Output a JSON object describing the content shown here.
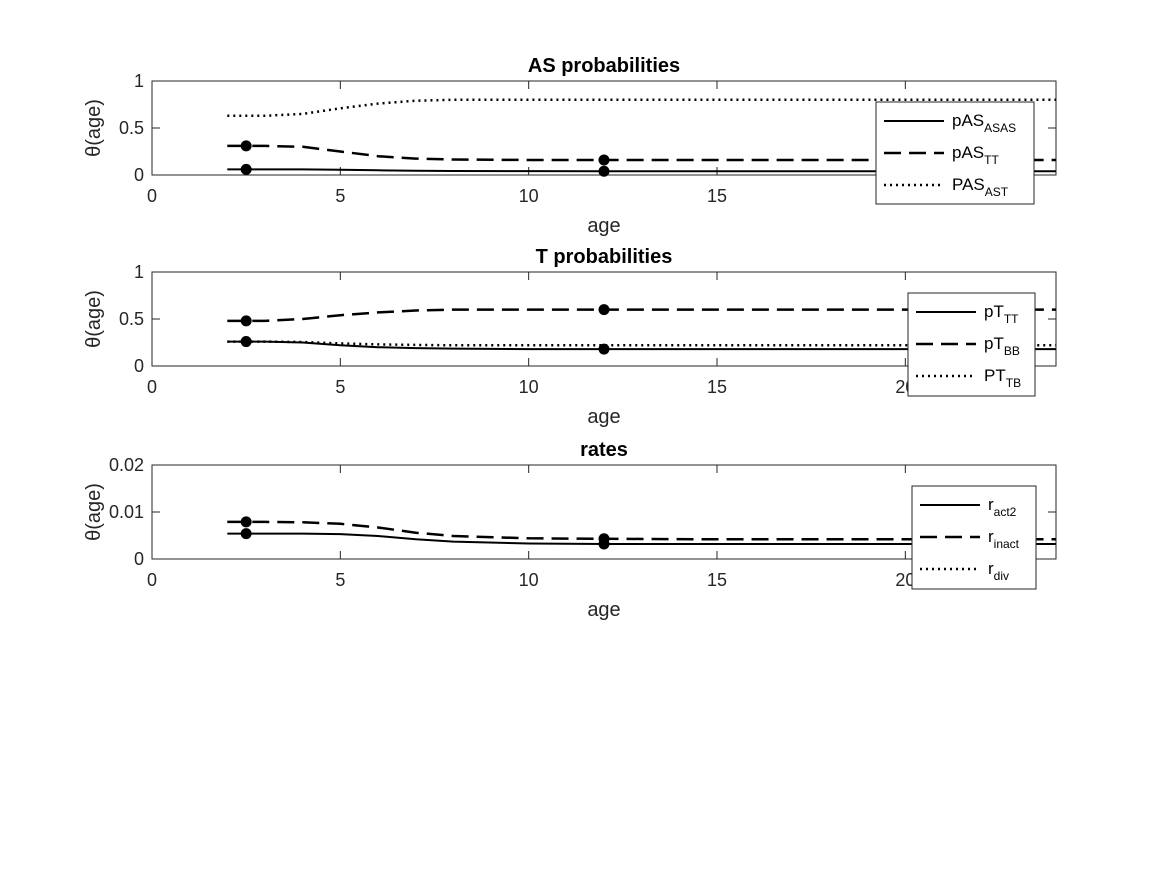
{
  "chart_data": [
    {
      "type": "line",
      "title": "AS probabilities",
      "xlabel": "age",
      "ylabel": "θ(age)",
      "xlim": [
        0,
        24
      ],
      "ylim": [
        0,
        1
      ],
      "xticks": [
        "0",
        "5",
        "10",
        "15",
        "20"
      ],
      "yticks": [
        "0",
        "0.5",
        "1"
      ],
      "legend_position": "right",
      "series": [
        {
          "name": "pAS",
          "sub": "ASAS",
          "style": "solid",
          "x": [
            2,
            3,
            4,
            5,
            6,
            7,
            8,
            10,
            12,
            15,
            20,
            24
          ],
          "y": [
            0.06,
            0.06,
            0.06,
            0.055,
            0.05,
            0.045,
            0.043,
            0.041,
            0.04,
            0.04,
            0.04,
            0.04
          ],
          "markers": [
            {
              "x": 2.5,
              "y": 0.06
            },
            {
              "x": 12,
              "y": 0.04
            }
          ]
        },
        {
          "name": "pAS",
          "sub": "TT",
          "style": "dashed",
          "x": [
            2,
            3,
            4,
            5,
            6,
            7,
            8,
            10,
            12,
            15,
            20,
            24
          ],
          "y": [
            0.31,
            0.31,
            0.3,
            0.25,
            0.2,
            0.175,
            0.165,
            0.16,
            0.16,
            0.16,
            0.16,
            0.16
          ],
          "markers": [
            {
              "x": 2.5,
              "y": 0.31
            },
            {
              "x": 12,
              "y": 0.16
            }
          ]
        },
        {
          "name": "PAS",
          "sub": "AST",
          "style": "dotted",
          "x": [
            2,
            3,
            4,
            5,
            6,
            7,
            8,
            10,
            12,
            15,
            20,
            24
          ],
          "y": [
            0.63,
            0.63,
            0.65,
            0.71,
            0.76,
            0.79,
            0.8,
            0.8,
            0.8,
            0.8,
            0.8,
            0.8
          ],
          "markers": []
        }
      ]
    },
    {
      "type": "line",
      "title": "T probabilities",
      "xlabel": "age",
      "ylabel": "θ(age)",
      "xlim": [
        0,
        24
      ],
      "ylim": [
        0,
        1
      ],
      "xticks": [
        "0",
        "5",
        "10",
        "15",
        "20"
      ],
      "yticks": [
        "0",
        "0.5",
        "1"
      ],
      "legend_position": "right",
      "series": [
        {
          "name": "pT",
          "sub": "TT",
          "style": "solid",
          "x": [
            2,
            3,
            4,
            5,
            6,
            7,
            8,
            10,
            12,
            15,
            20,
            24
          ],
          "y": [
            0.26,
            0.26,
            0.25,
            0.22,
            0.2,
            0.19,
            0.185,
            0.18,
            0.18,
            0.18,
            0.18,
            0.18
          ],
          "markers": [
            {
              "x": 2.5,
              "y": 0.26
            },
            {
              "x": 12,
              "y": 0.18
            }
          ]
        },
        {
          "name": "pT",
          "sub": "BB",
          "style": "dashed",
          "x": [
            2,
            3,
            4,
            5,
            6,
            7,
            8,
            10,
            12,
            15,
            20,
            24
          ],
          "y": [
            0.48,
            0.48,
            0.5,
            0.54,
            0.57,
            0.59,
            0.6,
            0.6,
            0.6,
            0.6,
            0.6,
            0.6
          ],
          "markers": [
            {
              "x": 2.5,
              "y": 0.48
            },
            {
              "x": 12,
              "y": 0.6
            }
          ]
        },
        {
          "name": "PT",
          "sub": "TB",
          "style": "dotted",
          "x": [
            2,
            3,
            4,
            5,
            6,
            7,
            8,
            10,
            12,
            15,
            20,
            24
          ],
          "y": [
            0.26,
            0.26,
            0.255,
            0.24,
            0.23,
            0.225,
            0.22,
            0.22,
            0.22,
            0.22,
            0.22,
            0.22
          ],
          "markers": []
        }
      ]
    },
    {
      "type": "line",
      "title": "rates",
      "xlabel": "age",
      "ylabel": "θ(age)",
      "xlim": [
        0,
        24
      ],
      "ylim": [
        0,
        0.02
      ],
      "xticks": [
        "0",
        "5",
        "10",
        "15",
        "20"
      ],
      "yticks": [
        "0",
        "0.01",
        "0.02"
      ],
      "legend_position": "right",
      "series": [
        {
          "name": "r",
          "sub": "act2",
          "style": "solid",
          "x": [
            2,
            3,
            4,
            5,
            6,
            7,
            8,
            10,
            12,
            15,
            20,
            24
          ],
          "y": [
            0.0054,
            0.0054,
            0.0054,
            0.0053,
            0.0049,
            0.0042,
            0.0037,
            0.0033,
            0.0032,
            0.0032,
            0.0032,
            0.0032
          ],
          "markers": [
            {
              "x": 2.5,
              "y": 0.0054
            },
            {
              "x": 12,
              "y": 0.0032
            }
          ]
        },
        {
          "name": "r",
          "sub": "inact",
          "style": "dashed",
          "x": [
            2,
            3,
            4,
            5,
            6,
            7,
            8,
            10,
            12,
            15,
            20,
            24
          ],
          "y": [
            0.0079,
            0.0079,
            0.0078,
            0.0075,
            0.0067,
            0.0056,
            0.0049,
            0.0044,
            0.0043,
            0.0042,
            0.0042,
            0.0042
          ],
          "markers": [
            {
              "x": 2.5,
              "y": 0.0079
            },
            {
              "x": 12,
              "y": 0.0043
            }
          ]
        },
        {
          "name": "r",
          "sub": "div",
          "style": "dotted",
          "x": [],
          "y": [],
          "markers": []
        }
      ]
    }
  ]
}
